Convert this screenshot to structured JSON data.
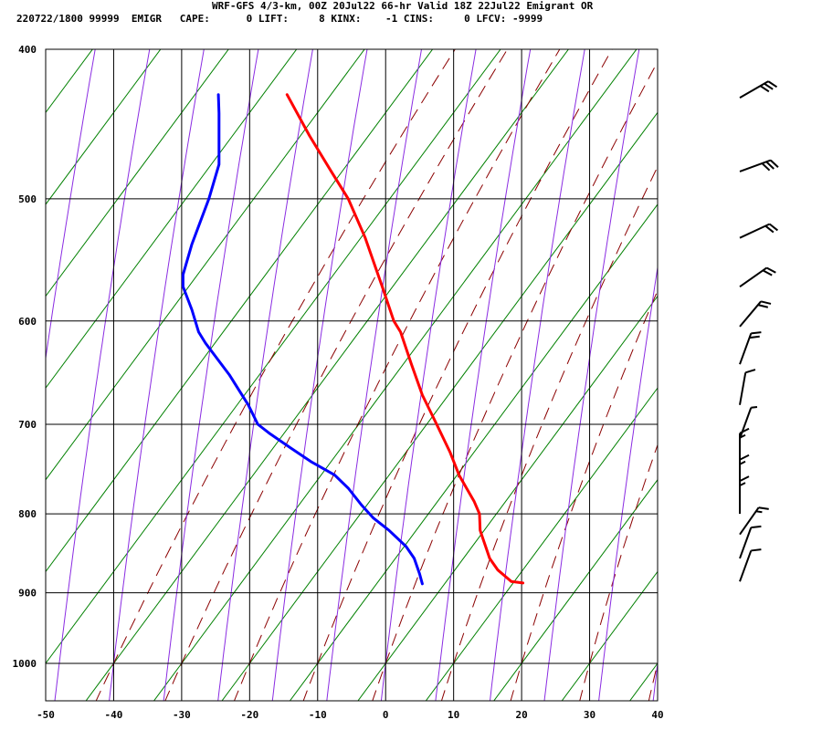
{
  "header": {
    "line1": "WRF-GFS 4/3-km, 00Z 20Jul22 66-hr Valid 18Z 22Jul22 Emigrant OR",
    "line2": "220722/1800 99999  EMIGR   CAPE:      0 LIFT:     8 KINX:    -1 CINS:     0 LFCV: -9999"
  },
  "colors": {
    "temperature": "#ff0000",
    "dewpoint": "#0000ff",
    "dry_adiabat": "#8b0000",
    "moist_adiabat": "#8a2be2",
    "mixing_ratio": "#008000",
    "grid": "#000000",
    "wind_barb": "#000000"
  },
  "chart_data": {
    "type": "line",
    "chart_kind": "skew-T log-P sounding",
    "xlabel": "",
    "ylabel": "",
    "xlim": [
      -50,
      40
    ],
    "ylim": [
      1040,
      400
    ],
    "y_scale": "log",
    "x_ticks": [
      -50,
      -40,
      -30,
      -20,
      -10,
      0,
      10,
      20,
      30,
      40
    ],
    "y_ticks": [
      400,
      500,
      600,
      700,
      800,
      900,
      1000
    ],
    "grid": true,
    "series": [
      {
        "key": "temperature",
        "color": "#ff0000",
        "points": [
          {
            "p": 887,
            "t": 20.2
          },
          {
            "p": 885,
            "t": 18.5
          },
          {
            "p": 870,
            "t": 16.5
          },
          {
            "p": 855,
            "t": 15.3
          },
          {
            "p": 840,
            "t": 14.7
          },
          {
            "p": 830,
            "t": 14.3
          },
          {
            "p": 820,
            "t": 13.9
          },
          {
            "p": 800,
            "t": 13.8
          },
          {
            "p": 785,
            "t": 13.0
          },
          {
            "p": 770,
            "t": 11.9
          },
          {
            "p": 755,
            "t": 10.8
          },
          {
            "p": 730,
            "t": 9.5
          },
          {
            "p": 700,
            "t": 7.5
          },
          {
            "p": 670,
            "t": 5.4
          },
          {
            "p": 640,
            "t": 3.8
          },
          {
            "p": 610,
            "t": 2.2
          },
          {
            "p": 600,
            "t": 1.2
          },
          {
            "p": 570,
            "t": -0.5
          },
          {
            "p": 530,
            "t": -3.0
          },
          {
            "p": 500,
            "t": -5.5
          },
          {
            "p": 480,
            "t": -8.0
          },
          {
            "p": 455,
            "t": -11.2
          },
          {
            "p": 428,
            "t": -14.5
          }
        ]
      },
      {
        "key": "dewpoint",
        "color": "#0000ff",
        "points": [
          {
            "p": 888,
            "t": 5.4
          },
          {
            "p": 875,
            "t": 5.0
          },
          {
            "p": 855,
            "t": 4.2
          },
          {
            "p": 840,
            "t": 3.0
          },
          {
            "p": 820,
            "t": 0.5
          },
          {
            "p": 805,
            "t": -1.8
          },
          {
            "p": 790,
            "t": -3.5
          },
          {
            "p": 770,
            "t": -5.5
          },
          {
            "p": 755,
            "t": -7.5
          },
          {
            "p": 740,
            "t": -11.0
          },
          {
            "p": 725,
            "t": -14.0
          },
          {
            "p": 710,
            "t": -17.0
          },
          {
            "p": 700,
            "t": -18.8
          },
          {
            "p": 680,
            "t": -20.2
          },
          {
            "p": 650,
            "t": -23.0
          },
          {
            "p": 620,
            "t": -26.5
          },
          {
            "p": 610,
            "t": -27.5
          },
          {
            "p": 590,
            "t": -28.5
          },
          {
            "p": 570,
            "t": -29.8
          },
          {
            "p": 560,
            "t": -29.8
          },
          {
            "p": 535,
            "t": -28.5
          },
          {
            "p": 500,
            "t": -26.0
          },
          {
            "p": 475,
            "t": -24.5
          },
          {
            "p": 440,
            "t": -24.5
          },
          {
            "p": 428,
            "t": -24.6
          }
        ]
      }
    ],
    "wind_barbs": [
      {
        "p": 885,
        "dir": 20,
        "speed": 10
      },
      {
        "p": 855,
        "dir": 20,
        "speed": 10
      },
      {
        "p": 825,
        "dir": 35,
        "speed": 15
      },
      {
        "p": 800,
        "dir": 0,
        "speed": 15
      },
      {
        "p": 775,
        "dir": 0,
        "speed": 15
      },
      {
        "p": 745,
        "dir": 0,
        "speed": 15
      },
      {
        "p": 715,
        "dir": 20,
        "speed": 5
      },
      {
        "p": 680,
        "dir": 10,
        "speed": 10
      },
      {
        "p": 640,
        "dir": 20,
        "speed": 20
      },
      {
        "p": 605,
        "dir": 40,
        "speed": 20
      },
      {
        "p": 570,
        "dir": 55,
        "speed": 20
      },
      {
        "p": 530,
        "dir": 65,
        "speed": 20
      },
      {
        "p": 480,
        "dir": 70,
        "speed": 30
      },
      {
        "p": 430,
        "dir": 60,
        "speed": 30
      }
    ]
  }
}
